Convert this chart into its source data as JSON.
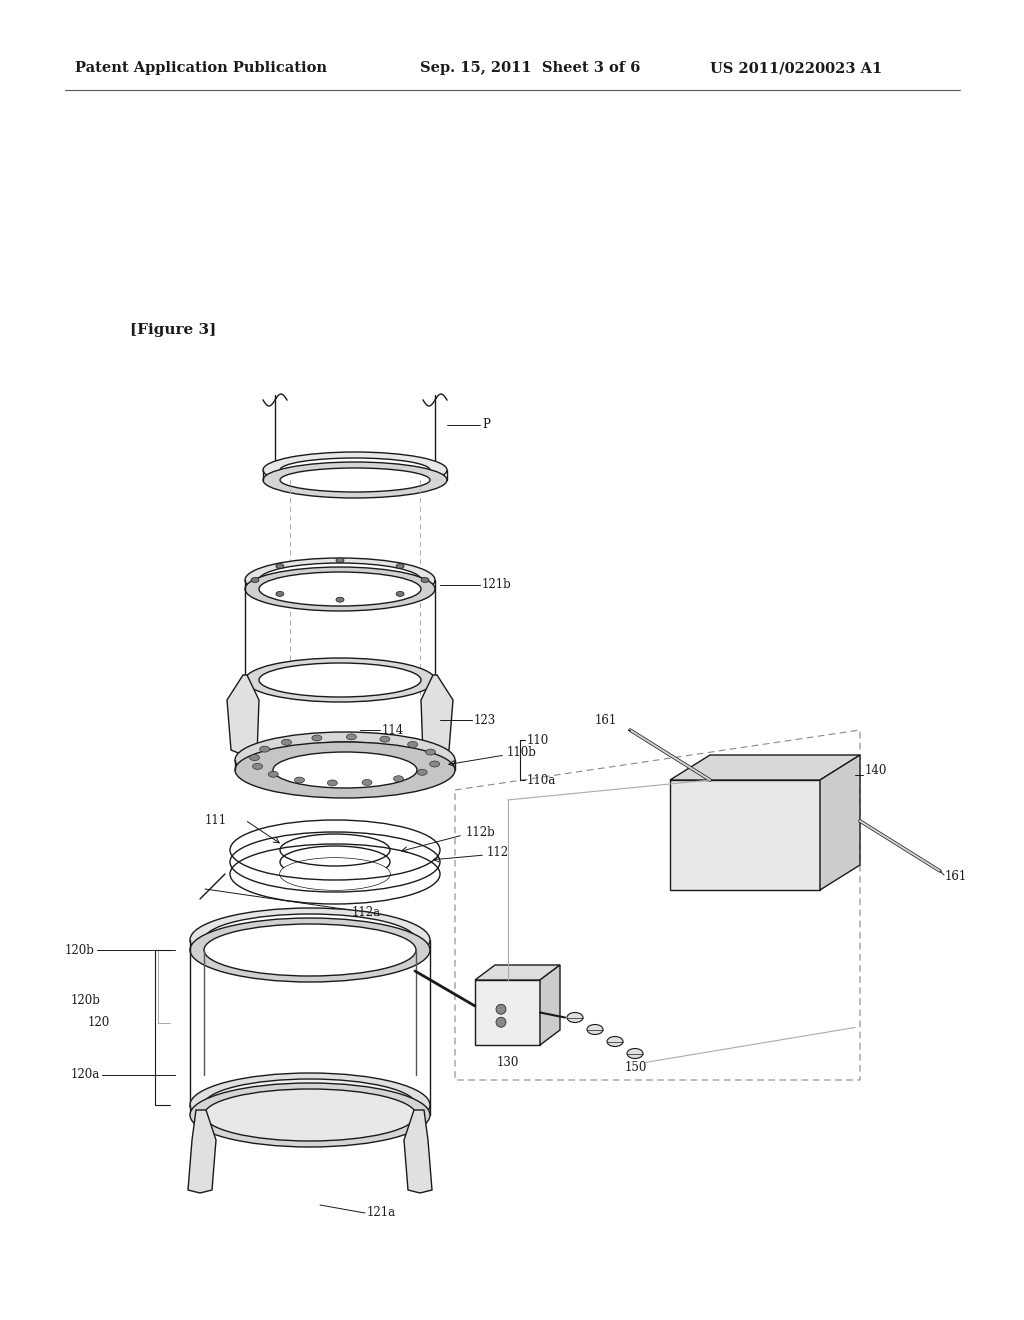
{
  "bg_color": "#ffffff",
  "lc": "#1a1a1a",
  "header_left": "Patent Application Publication",
  "header_center": "Sep. 15, 2011  Sheet 3 of 6",
  "header_right": "US 2011/0220023 A1",
  "figure_label": "[Figure 3]",
  "label_fontsize": 8.5,
  "header_fontsize": 10.5,
  "fig_label_fontsize": 11
}
